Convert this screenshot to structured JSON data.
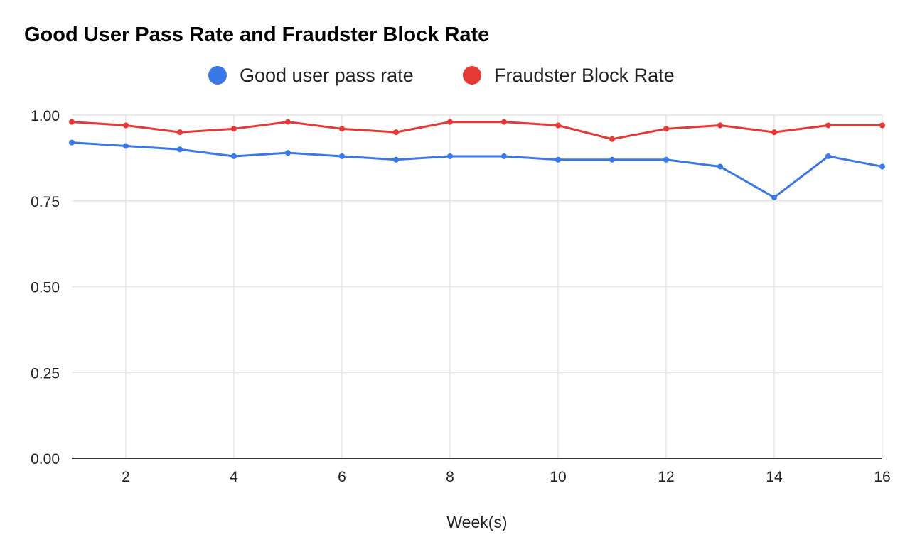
{
  "chart_data": {
    "type": "line",
    "title": "Good User Pass Rate and Fraudster Block Rate",
    "xlabel": "Week(s)",
    "ylabel": "",
    "x": [
      1,
      2,
      3,
      4,
      5,
      6,
      7,
      8,
      9,
      10,
      11,
      12,
      13,
      14,
      15,
      16
    ],
    "xlim": [
      1,
      16
    ],
    "x_ticks": [
      2,
      4,
      6,
      8,
      10,
      12,
      14,
      16
    ],
    "x_tick_labels": [
      "2",
      "4",
      "6",
      "8",
      "10",
      "12",
      "14",
      "16"
    ],
    "ylim": [
      0,
      1
    ],
    "y_ticks": [
      0,
      0.25,
      0.5,
      0.75,
      1
    ],
    "y_tick_labels": [
      "0.00",
      "0.25",
      "0.50",
      "0.75",
      "1.00"
    ],
    "grid": true,
    "legend_position": "top-center",
    "series": [
      {
        "name": "Good user pass rate",
        "color": "#3b78e7",
        "values": [
          0.92,
          0.91,
          0.9,
          0.88,
          0.89,
          0.88,
          0.87,
          0.88,
          0.88,
          0.87,
          0.87,
          0.87,
          0.85,
          0.76,
          0.88,
          0.85
        ]
      },
      {
        "name": "Fraudster Block Rate",
        "color": "#e53935",
        "values": [
          0.98,
          0.97,
          0.95,
          0.96,
          0.98,
          0.96,
          0.95,
          0.98,
          0.98,
          0.97,
          0.93,
          0.96,
          0.97,
          0.95,
          0.97,
          0.97
        ]
      }
    ]
  }
}
